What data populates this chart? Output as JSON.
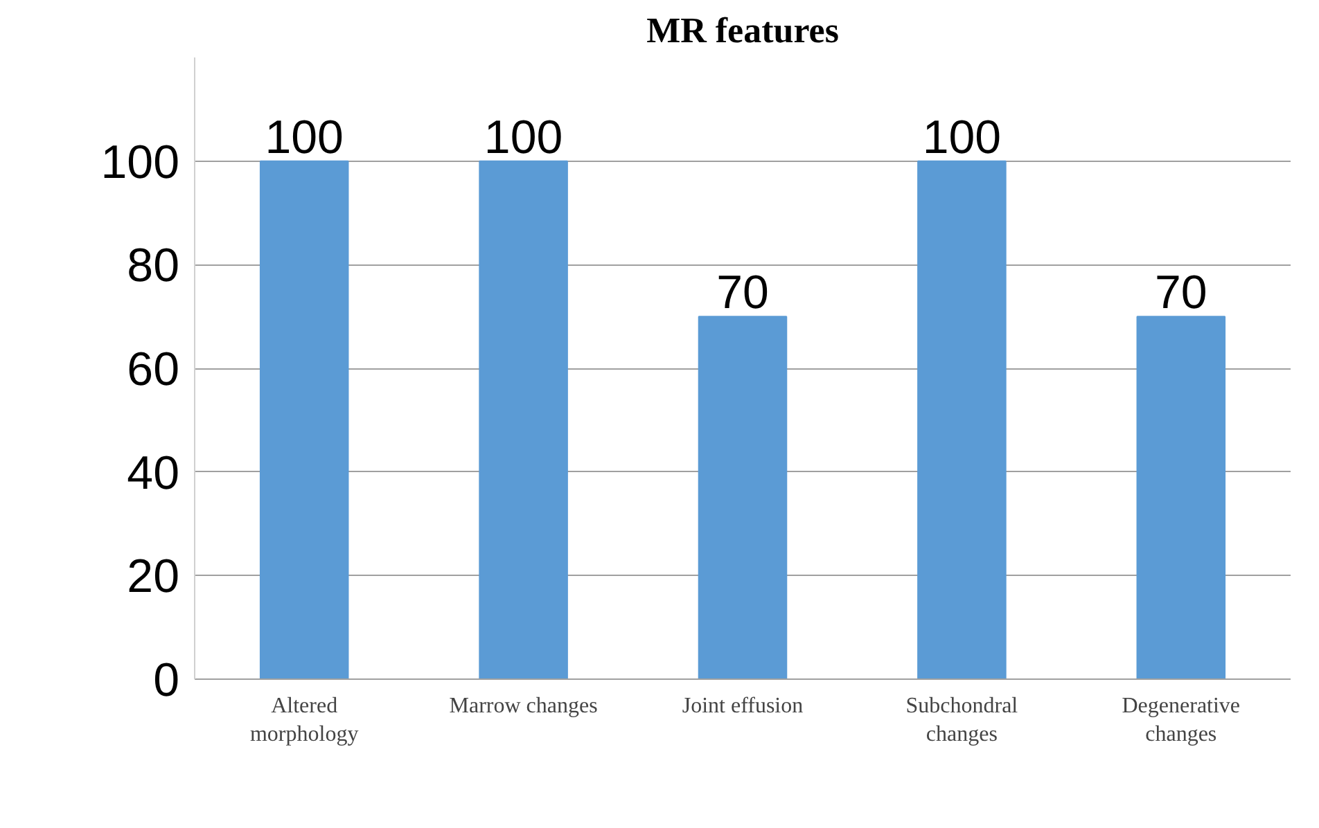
{
  "chart_data": {
    "type": "bar",
    "title": "MR features",
    "categories": [
      "Altered morphology",
      "Marrow changes",
      "Joint effusion",
      "Subchondral changes",
      "Degenerative changes"
    ],
    "values": [
      100,
      100,
      70,
      100,
      70
    ],
    "color": "#5b9bd5",
    "ylim": [
      0,
      120
    ],
    "yticks": [
      0,
      20,
      40,
      60,
      80,
      100
    ],
    "grid": "y",
    "data_labels": true
  }
}
